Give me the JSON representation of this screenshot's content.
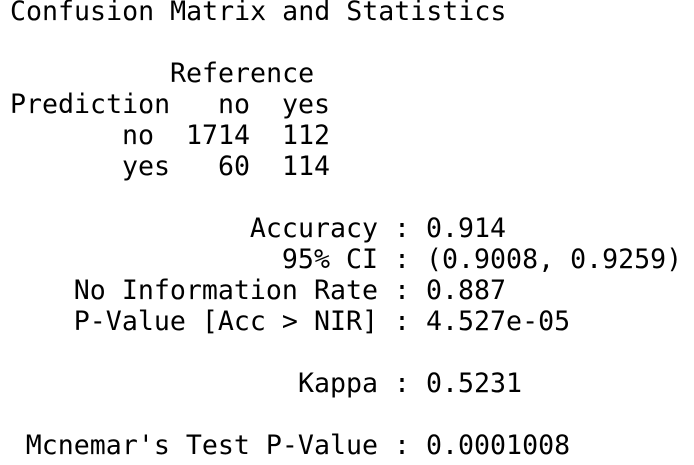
{
  "title": "Confusion Matrix and Statistics",
  "matrix": {
    "reference_label": "Reference",
    "prediction_label": "Prediction",
    "columns": [
      "no",
      "yes"
    ],
    "rows": [
      {
        "label": "no",
        "values": [
          1714,
          112
        ]
      },
      {
        "label": "yes",
        "values": [
          60,
          114
        ]
      }
    ]
  },
  "statistics": [
    {
      "label": "Accuracy",
      "value": "0.914"
    },
    {
      "label": "95% CI",
      "value": "(0.9008, 0.9259)"
    },
    {
      "label": "No Information Rate",
      "value": "0.887"
    },
    {
      "label": "P-Value [Acc > NIR]",
      "value": "4.527e-05"
    },
    {
      "label": "Kappa",
      "value": "0.5231"
    },
    {
      "label": "Mcnemar's Test P-Value",
      "value": "0.0001008"
    }
  ]
}
